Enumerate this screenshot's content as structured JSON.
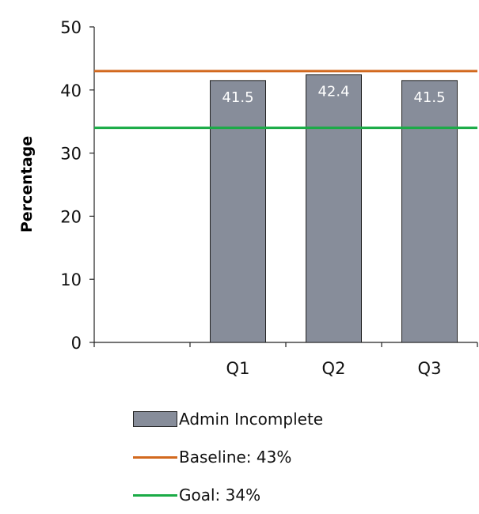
{
  "chart_data": {
    "type": "bar",
    "categories": [
      "Q1",
      "Q2",
      "Q3"
    ],
    "series": [
      {
        "name": "Admin Incomplete",
        "values": [
          41.5,
          42.4,
          41.5
        ],
        "color": "#878d9a"
      }
    ],
    "data_labels": [
      "41.5",
      "42.4",
      "41.5"
    ],
    "reference_lines": [
      {
        "label": "Baseline:  43%",
        "value": 43,
        "color": "#d2691e"
      },
      {
        "label": "Goal:  34%",
        "value": 34,
        "color": "#1aab46"
      }
    ],
    "ylabel": "Percentage",
    "ylim": [
      0,
      50
    ],
    "yticks": [
      0,
      10,
      20,
      30,
      40,
      50
    ],
    "grid": false,
    "legend_position": "bottom"
  }
}
